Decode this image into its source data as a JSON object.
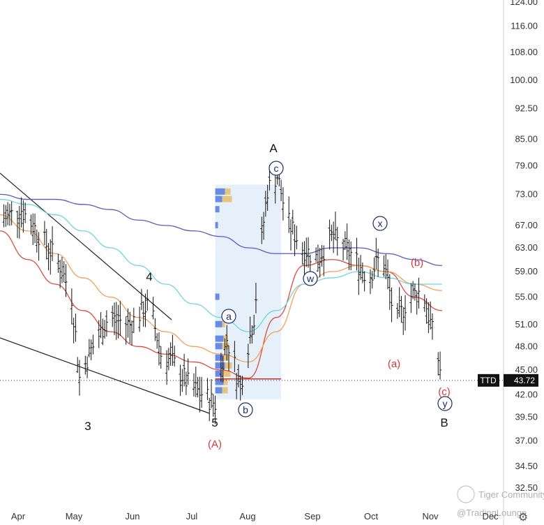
{
  "chart_data": {
    "type": "candlestick",
    "symbol": "TTD",
    "last_price": "43.72",
    "y_axis": {
      "scale": "log",
      "ticks": [
        "124.00",
        "116.00",
        "108.00",
        "100.00",
        "92.50",
        "85.00",
        "79.00",
        "73.00",
        "67.00",
        "63.00",
        "59.00",
        "55.00",
        "51.00",
        "48.00",
        "45.00",
        "42.00",
        "39.50",
        "37.00",
        "34.50",
        "32.50"
      ]
    },
    "x_axis": {
      "ticks": [
        "Apr",
        "May",
        "Jun",
        "Jul",
        "Aug",
        "Sep",
        "Oct",
        "Nov",
        "Dec"
      ]
    },
    "price_series_approx": [
      [
        "Mar-25",
        68
      ],
      [
        "Apr-05",
        70
      ],
      [
        "Apr-15",
        65
      ],
      [
        "Apr-25",
        60
      ],
      [
        "May-01",
        55
      ],
      [
        "May-05",
        44
      ],
      [
        "May-10",
        47
      ],
      [
        "May-20",
        52
      ],
      [
        "May-31",
        51
      ],
      [
        "Jun-10",
        54
      ],
      [
        "Jun-16",
        47
      ],
      [
        "Jun-22",
        46
      ],
      [
        "Jul-01",
        43
      ],
      [
        "Jul-08",
        42
      ],
      [
        "Jul-14",
        41
      ],
      [
        "Jul-20",
        49
      ],
      [
        "Jul-27",
        43
      ],
      [
        "Aug-03",
        52
      ],
      [
        "Aug-10",
        74
      ],
      [
        "Aug-15",
        77
      ],
      [
        "Aug-20",
        68
      ],
      [
        "Aug-28",
        63
      ],
      [
        "Sep-05",
        61
      ],
      [
        "Sep-12",
        65
      ],
      [
        "Sep-22",
        62
      ],
      [
        "Oct-01",
        58
      ],
      [
        "Oct-08",
        62
      ],
      [
        "Oct-15",
        51
      ],
      [
        "Oct-22",
        55
      ],
      [
        "Oct-29",
        56
      ],
      [
        "Nov-03",
        50
      ],
      [
        "Nov-08",
        44
      ]
    ],
    "moving_averages": [
      {
        "color": "#d94b3f",
        "values": [
          66,
          61,
          57,
          53,
          50,
          48,
          47,
          46,
          45,
          44,
          52,
          60,
          61,
          60,
          59,
          55,
          53
        ]
      },
      {
        "color": "#f2a05a",
        "values": [
          69,
          66,
          62,
          58,
          55,
          52,
          50,
          48,
          47,
          46,
          50,
          57,
          59,
          60,
          59,
          57,
          56
        ]
      },
      {
        "color": "#6fd6dd",
        "values": [
          72,
          71,
          69,
          66,
          63,
          60,
          57,
          54,
          52,
          50,
          53,
          57,
          58,
          59,
          58,
          57,
          57
        ]
      },
      {
        "color": "#5a5cc0",
        "values": [
          73,
          72,
          72,
          71,
          70,
          68,
          67,
          66,
          65,
          63,
          62,
          62,
          63,
          63,
          62,
          61,
          60
        ]
      }
    ],
    "volume_profile_range": [
      "Jul-14",
      "Aug-17"
    ],
    "wave_labels": {
      "black": [
        "3",
        "4",
        "5",
        "A",
        "B"
      ],
      "red": [
        "(A)",
        "(a)",
        "(b)",
        "(c)"
      ],
      "circled": [
        "a",
        "b",
        "c",
        "w",
        "x",
        "y"
      ]
    },
    "watermarks": [
      "Tiger Community",
      "@TradingLounge"
    ],
    "grid": false
  }
}
